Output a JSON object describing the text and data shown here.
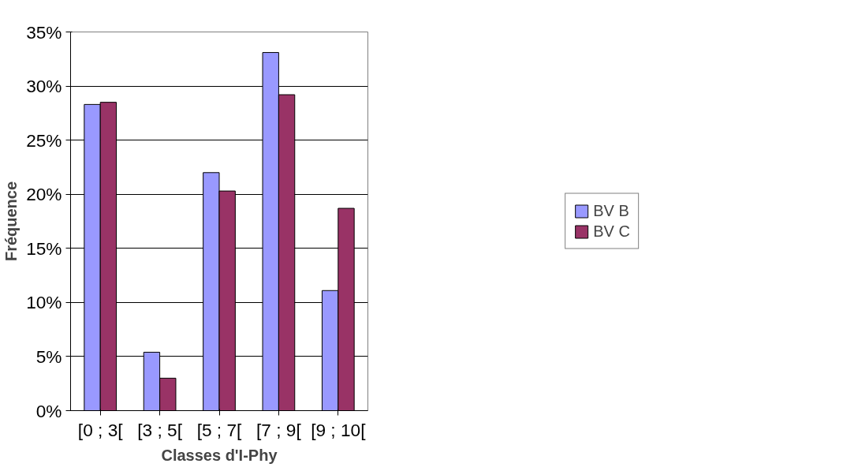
{
  "chart_data": {
    "type": "bar",
    "xlabel": "Classes d'I-Phy",
    "ylabel": "Fréquence",
    "categories": [
      "[0 ; 3[",
      "[3 ; 5[",
      "[5 ; 7[",
      "[7 ; 9[",
      "[9 ; 10["
    ],
    "series": [
      {
        "name": "BV B",
        "color": "#9999ff",
        "values": [
          28.3,
          5.4,
          22.0,
          33.1,
          11.1
        ]
      },
      {
        "name": "BV C",
        "color": "#993366",
        "values": [
          28.5,
          3.0,
          20.3,
          29.2,
          18.7
        ]
      }
    ],
    "ylim": [
      0,
      35
    ],
    "yticks": [
      {
        "value": 0,
        "label": "0%"
      },
      {
        "value": 5,
        "label": "5%"
      },
      {
        "value": 10,
        "label": "10%"
      },
      {
        "value": 15,
        "label": "15%"
      },
      {
        "value": 20,
        "label": "20%"
      },
      {
        "value": 25,
        "label": "25%"
      },
      {
        "value": 30,
        "label": "30%"
      },
      {
        "value": 35,
        "label": "35%"
      }
    ],
    "grid": "y",
    "legend": "right"
  }
}
